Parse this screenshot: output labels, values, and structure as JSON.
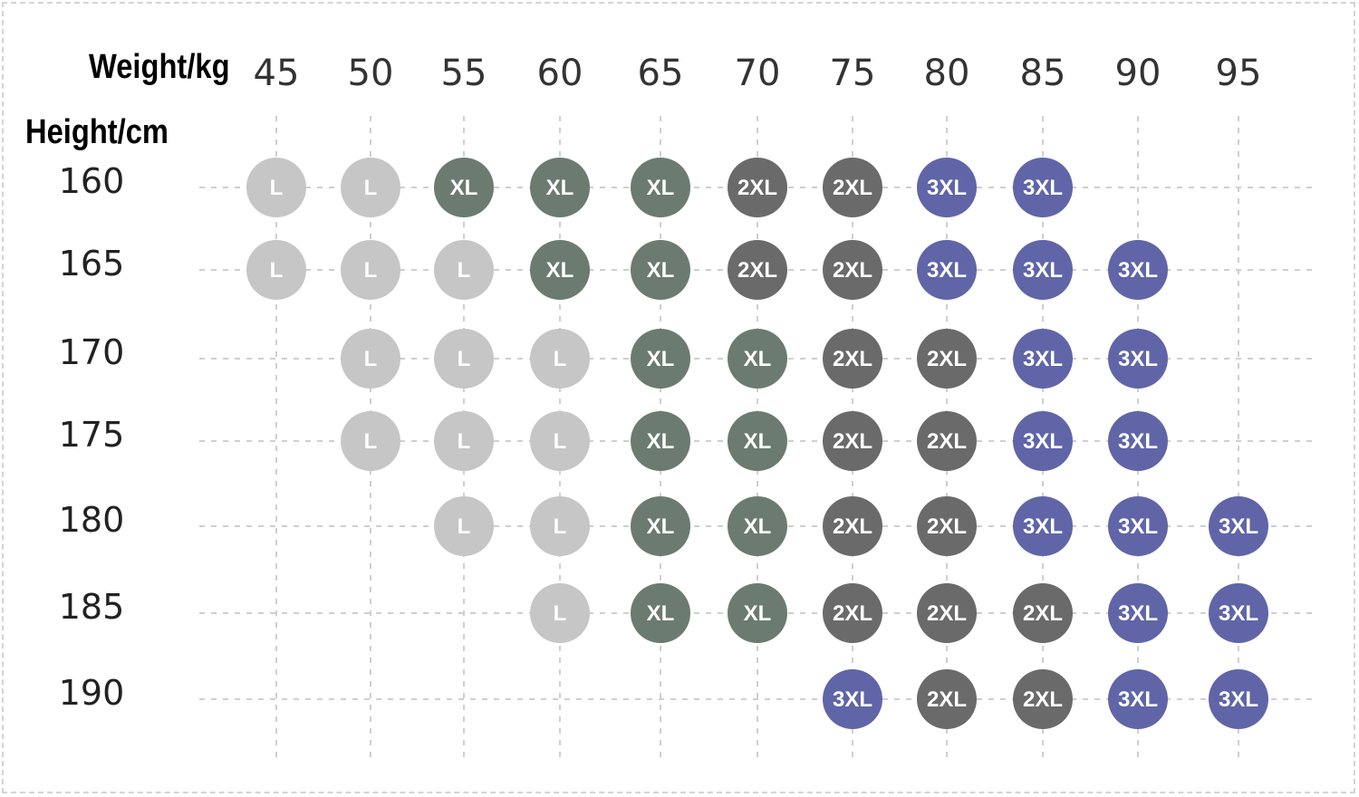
{
  "chart_data": {
    "type": "table",
    "x_axis_title": "Weight/kg",
    "y_axis_title": "Height/cm",
    "x": [
      45,
      50,
      55,
      60,
      65,
      70,
      75,
      80,
      85,
      90,
      95
    ],
    "y": [
      160,
      165,
      170,
      175,
      180,
      185,
      190
    ],
    "grid": true,
    "cells": [
      [
        "L",
        "L",
        "XL",
        "XL",
        "XL",
        "2XL",
        "2XL",
        "3XL",
        "3XL",
        null,
        null
      ],
      [
        "L",
        "L",
        "L",
        "XL",
        "XL",
        "2XL",
        "2XL",
        "3XL",
        "3XL",
        "3XL",
        null
      ],
      [
        null,
        "L",
        "L",
        "L",
        "XL",
        "XL",
        "2XL",
        "2XL",
        "3XL",
        "3XL",
        null
      ],
      [
        null,
        "L",
        "L",
        "L",
        "XL",
        "XL",
        "2XL",
        "2XL",
        "3XL",
        "3XL",
        null
      ],
      [
        null,
        null,
        "L",
        "L",
        "XL",
        "XL",
        "2XL",
        "2XL",
        "3XL",
        "3XL",
        "3XL"
      ],
      [
        null,
        null,
        null,
        "L",
        "XL",
        "XL",
        "2XL",
        "2XL",
        "2XL",
        "3XL",
        "3XL"
      ],
      [
        null,
        null,
        null,
        null,
        null,
        null,
        "3XL",
        "2XL",
        "2XL",
        "3XL",
        "3XL"
      ]
    ],
    "size_colors": {
      "L": "#c6c6c6",
      "XL": "#6b7b70",
      "2XL": "#6a6a6a",
      "3XL": "#6065a8"
    }
  }
}
